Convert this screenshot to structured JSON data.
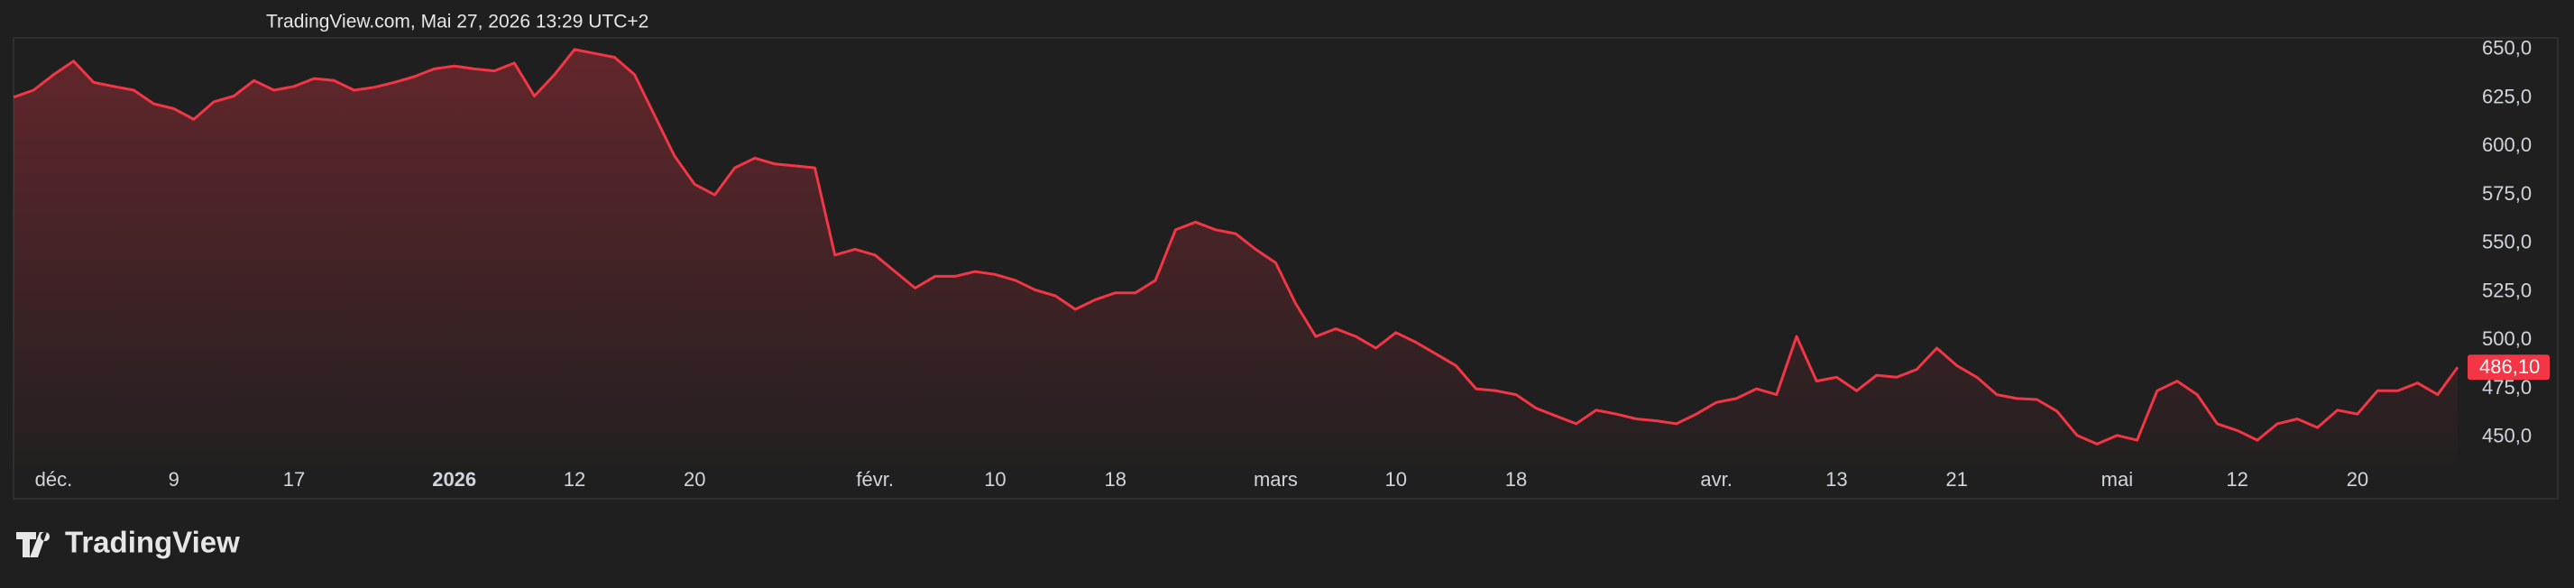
{
  "header": "TradingView.com, Mai 27, 2026 13:29 UTC+2",
  "brand": "TradingView",
  "chart_data": {
    "type": "area",
    "color": "#f23645",
    "values": [
      625.4,
      629,
      637,
      644,
      633,
      631,
      629,
      622,
      619.5,
      614,
      623,
      626,
      634,
      629,
      631,
      635,
      634,
      629,
      630.5,
      633,
      636,
      640,
      641.5,
      640,
      639,
      643,
      626,
      637,
      650,
      648,
      646,
      637,
      616,
      595,
      580.5,
      575,
      589,
      594,
      591,
      590,
      589,
      544,
      547,
      544,
      535.5,
      527,
      533,
      533,
      535.5,
      534,
      531,
      526,
      523,
      516,
      521,
      524.5,
      524.5,
      531,
      557,
      561,
      557,
      555,
      547,
      540,
      519,
      502,
      506,
      502,
      496,
      504,
      499,
      493,
      487,
      475,
      474,
      472,
      465,
      461,
      457,
      464,
      462,
      459.5,
      458.5,
      457,
      462,
      468,
      470,
      475,
      472,
      502,
      479,
      481,
      474,
      482,
      481,
      485,
      496,
      487,
      481,
      472,
      470,
      469.5,
      463.5,
      451,
      446.5,
      451,
      448.5,
      474,
      479,
      472,
      457,
      453.5,
      448.5,
      457,
      459.5,
      455,
      464,
      462,
      474,
      474,
      478,
      472,
      486.1
    ],
    "xlim": [
      0,
      122
    ],
    "xticks": [
      {
        "value": 2,
        "label": "déc."
      },
      {
        "value": 8,
        "label": "9"
      },
      {
        "value": 14,
        "label": "17"
      },
      {
        "value": 22,
        "label": "2026",
        "bold": true
      },
      {
        "value": 28,
        "label": "12"
      },
      {
        "value": 34,
        "label": "20"
      },
      {
        "value": 43,
        "label": "févr."
      },
      {
        "value": 49,
        "label": "10"
      },
      {
        "value": 55,
        "label": "18"
      },
      {
        "value": 63,
        "label": "mars"
      },
      {
        "value": 69,
        "label": "10"
      },
      {
        "value": 75,
        "label": "18"
      },
      {
        "value": 85,
        "label": "avr."
      },
      {
        "value": 91,
        "label": "13"
      },
      {
        "value": 97,
        "label": "21"
      },
      {
        "value": 105,
        "label": "mai"
      },
      {
        "value": 111,
        "label": "12"
      },
      {
        "value": 117,
        "label": "20"
      }
    ],
    "ylim": [
      436,
      656
    ],
    "yticks": [
      {
        "value": 450,
        "label": "450,0"
      },
      {
        "value": 475,
        "label": "475,0"
      },
      {
        "value": 500,
        "label": "500,0"
      },
      {
        "value": 525,
        "label": "525,0"
      },
      {
        "value": 550,
        "label": "550,0"
      },
      {
        "value": 575,
        "label": "575,0"
      },
      {
        "value": 600,
        "label": "600,0"
      },
      {
        "value": 625,
        "label": "625,0"
      },
      {
        "value": 650,
        "label": "650,0"
      }
    ],
    "last_price": {
      "value": 486.1,
      "label": "486,10"
    }
  }
}
